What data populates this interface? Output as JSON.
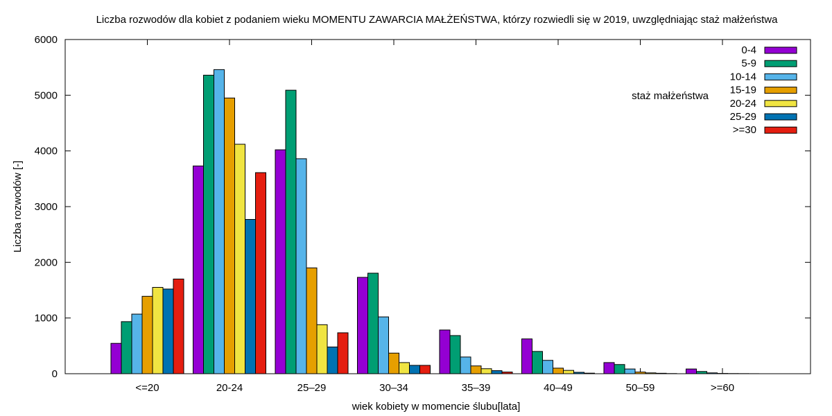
{
  "chart_data": {
    "type": "bar",
    "title": "Liczba rozwodów dla kobiet z podaniem wieku MOMENTU ZAWARCIA MAŁŻEŃSTWA, którzy rozwiedli się w 2019, uwzględniając staż małżeństwa",
    "xlabel": "wiek kobiety w momencie ślubu[lata]",
    "ylabel": "Liczba rozwodów [-]",
    "ylim": [
      0,
      6000
    ],
    "yticks": [
      "0",
      "1000",
      "2000",
      "3000",
      "4000",
      "5000",
      "6000"
    ],
    "categories": [
      "<=20",
      "20-24",
      "25–29",
      "30–34",
      "35–39",
      "40–49",
      "50–59",
      ">=60"
    ],
    "legend_title": "staż małżeństwa",
    "legend_position": "top-right",
    "grid": false,
    "series": [
      {
        "name": "0-4",
        "color": "#9400d3",
        "values": [
          545,
          3730,
          4020,
          1730,
          785,
          625,
          200,
          85
        ]
      },
      {
        "name": "5-9",
        "color": "#009e73",
        "values": [
          935,
          5360,
          5090,
          1805,
          685,
          400,
          165,
          40
        ]
      },
      {
        "name": "10-14",
        "color": "#56b4e9",
        "values": [
          1070,
          5460,
          3860,
          1020,
          300,
          240,
          85,
          15
        ]
      },
      {
        "name": "15-19",
        "color": "#e69f00",
        "values": [
          1390,
          4950,
          1900,
          370,
          140,
          100,
          30,
          5
        ]
      },
      {
        "name": "20-24",
        "color": "#f0e442",
        "values": [
          1550,
          4120,
          880,
          200,
          90,
          60,
          15,
          3
        ]
      },
      {
        "name": "25-29",
        "color": "#0072b2",
        "values": [
          1520,
          2770,
          480,
          150,
          55,
          25,
          8,
          2
        ]
      },
      {
        "name": ">=30",
        "color": "#e51e10",
        "values": [
          1700,
          3610,
          735,
          150,
          30,
          10,
          3,
          1
        ]
      }
    ]
  }
}
